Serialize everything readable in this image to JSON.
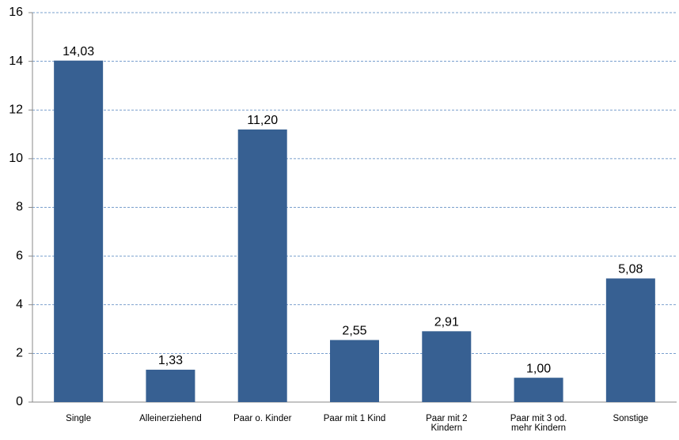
{
  "chart_data": {
    "type": "bar",
    "categories": [
      "Single",
      "Alleinerziehend",
      "Paar o. Kinder",
      "Paar mit 1 Kind",
      "Paar mit 2 Kindern",
      "Paar mit 3 od. mehr Kindern",
      "Sonstige"
    ],
    "values": [
      14.03,
      1.33,
      11.2,
      2.55,
      2.91,
      1.0,
      5.08
    ],
    "value_labels": [
      "14,03",
      "1,33",
      "11,20",
      "2,55",
      "2,91",
      "1,00",
      "5,08"
    ],
    "color": "#376092",
    "ylim": [
      0,
      16
    ],
    "yticks": [
      0,
      2,
      4,
      6,
      8,
      10,
      12,
      14,
      16
    ],
    "grid": true
  }
}
